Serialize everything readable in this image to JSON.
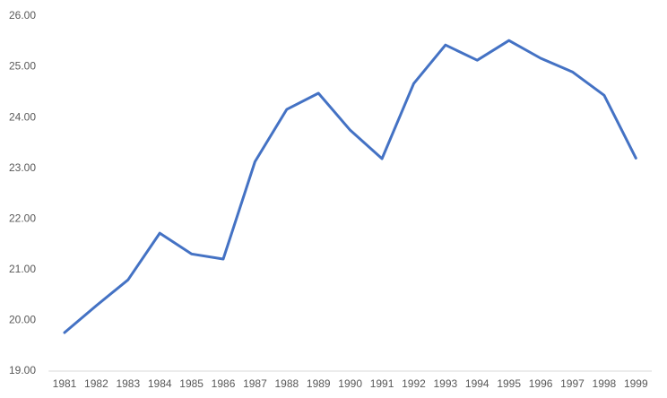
{
  "chart_data": {
    "type": "line",
    "categories": [
      "1981",
      "1982",
      "1983",
      "1984",
      "1985",
      "1986",
      "1987",
      "1988",
      "1989",
      "1990",
      "1991",
      "1992",
      "1993",
      "1994",
      "1995",
      "1996",
      "1997",
      "1998",
      "1999"
    ],
    "series": [
      {
        "color": "#4472c4",
        "values": [
          19.76,
          20.29,
          20.8,
          21.72,
          21.31,
          21.21,
          23.13,
          24.16,
          24.48,
          23.75,
          23.19,
          24.67,
          25.43,
          25.13,
          25.52,
          25.17,
          24.9,
          24.44,
          23.2
        ]
      }
    ],
    "ylim": [
      19,
      26
    ],
    "yticks": [
      {
        "value": 19,
        "label": "19.00"
      },
      {
        "value": 20,
        "label": "20.00"
      },
      {
        "value": 21,
        "label": "21.00"
      },
      {
        "value": 22,
        "label": "22.00"
      },
      {
        "value": 23,
        "label": "23.00"
      },
      {
        "value": 24,
        "label": "24.00"
      },
      {
        "value": 25,
        "label": "25.00"
      },
      {
        "value": 26,
        "label": "26.00"
      }
    ],
    "grid": false
  }
}
